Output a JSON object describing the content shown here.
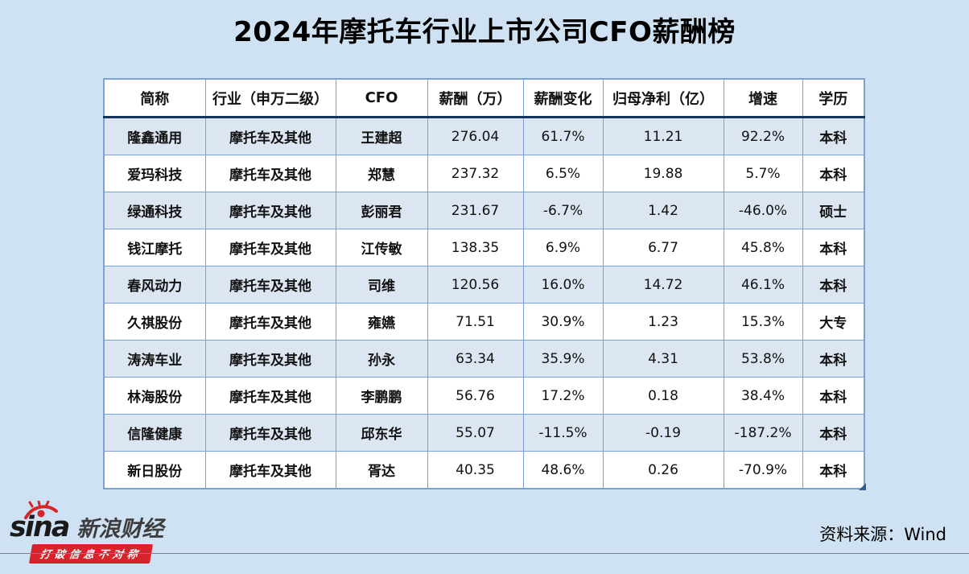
{
  "page": {
    "title": "2024年摩托车行业上市公司CFO薪酬榜"
  },
  "chart_data": {
    "type": "table",
    "title": "2024年摩托车行业上市公司CFO薪酬榜",
    "columns": [
      "简称",
      "行业（申万二级）",
      "CFO",
      "薪酬（万）",
      "薪酬变化",
      "归母净利（亿）",
      "增速",
      "学历"
    ],
    "rows": [
      [
        "隆鑫通用",
        "摩托车及其他",
        "王建超",
        "276.04",
        "61.7%",
        "11.21",
        "92.2%",
        "本科"
      ],
      [
        "爱玛科技",
        "摩托车及其他",
        "郑慧",
        "237.32",
        "6.5%",
        "19.88",
        "5.7%",
        "本科"
      ],
      [
        "绿通科技",
        "摩托车及其他",
        "彭丽君",
        "231.67",
        "-6.7%",
        "1.42",
        "-46.0%",
        "硕士"
      ],
      [
        "钱江摩托",
        "摩托车及其他",
        "江传敏",
        "138.35",
        "6.9%",
        "6.77",
        "45.8%",
        "本科"
      ],
      [
        "春风动力",
        "摩托车及其他",
        "司维",
        "120.56",
        "16.0%",
        "14.72",
        "46.1%",
        "本科"
      ],
      [
        "久祺股份",
        "摩托车及其他",
        "雍嬿",
        "71.51",
        "30.9%",
        "1.23",
        "15.3%",
        "大专"
      ],
      [
        "涛涛车业",
        "摩托车及其他",
        "孙永",
        "63.34",
        "35.9%",
        "4.31",
        "53.8%",
        "本科"
      ],
      [
        "林海股份",
        "摩托车及其他",
        "李鹏鹏",
        "56.76",
        "17.2%",
        "0.18",
        "38.4%",
        "本科"
      ],
      [
        "信隆健康",
        "摩托车及其他",
        "邱东华",
        "55.07",
        "-11.5%",
        "-0.19",
        "-187.2%",
        "本科"
      ],
      [
        "新日股份",
        "摩托车及其他",
        "胥达",
        "40.35",
        "48.6%",
        "0.26",
        "-70.9%",
        "本科"
      ]
    ]
  },
  "footer": {
    "logo_text": "sina",
    "logo_brand": "新浪财经",
    "logo_slogan": "打破信息不对称",
    "source": "资料来源：Wind"
  },
  "colors": {
    "page_bg": "#cfe2f3",
    "stripe_bg": "#dce6f2",
    "border_blue": "#7aa2d2",
    "header_divider": "#16355c",
    "ribbon_red": "#d8232a"
  }
}
